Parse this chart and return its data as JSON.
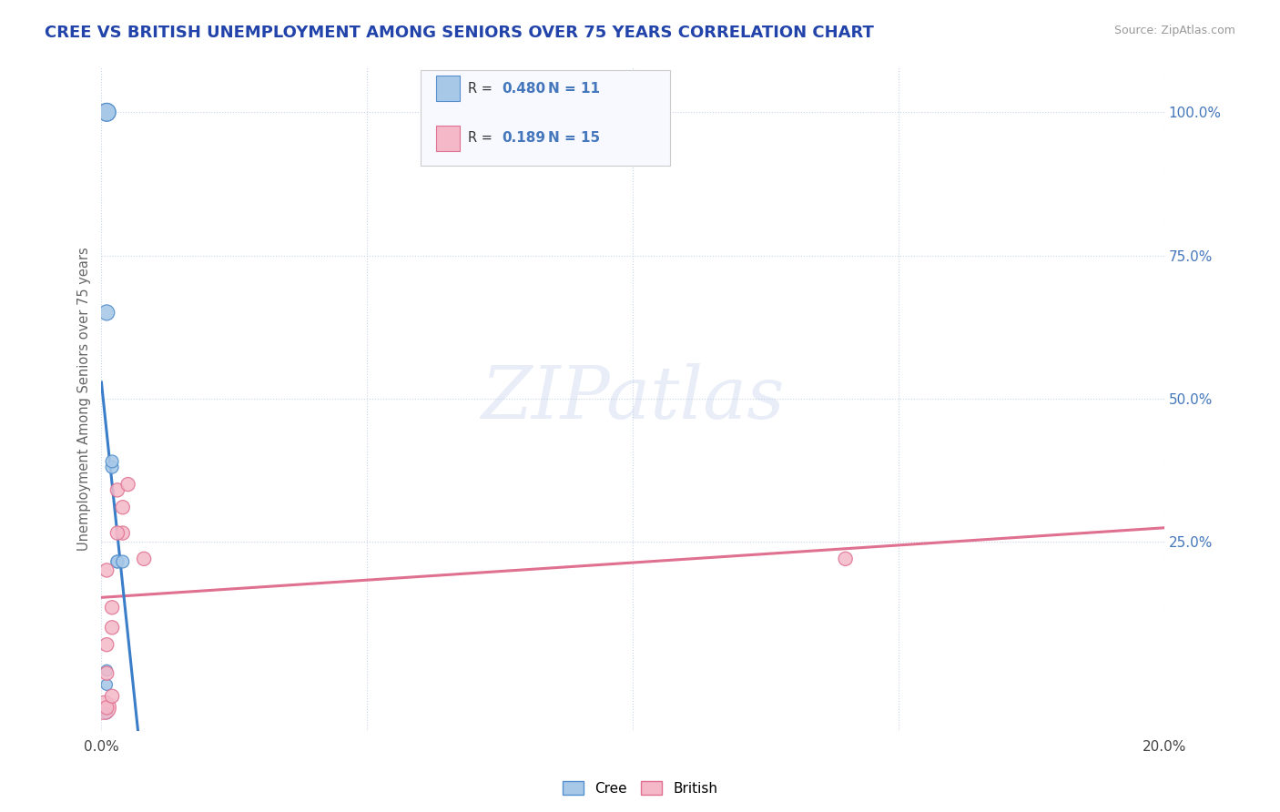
{
  "title": "CREE VS BRITISH UNEMPLOYMENT AMONG SENIORS OVER 75 YEARS CORRELATION CHART",
  "source": "Source: ZipAtlas.com",
  "ylabel": "Unemployment Among Seniors over 75 years",
  "xlim": [
    0.0,
    0.2
  ],
  "ylim": [
    -0.08,
    1.08
  ],
  "y_ticks_right": [
    0.0,
    0.25,
    0.5,
    0.75,
    1.0
  ],
  "y_tick_labels_right": [
    "",
    "25.0%",
    "50.0%",
    "75.0%",
    "100.0%"
  ],
  "cree_x": [
    0.001,
    0.001,
    0.001,
    0.001,
    0.002,
    0.002,
    0.003,
    0.003,
    0.004,
    0.001,
    0.001
  ],
  "cree_y": [
    0.0,
    -0.05,
    0.025,
    0.65,
    0.38,
    0.39,
    0.215,
    0.215,
    0.215,
    1.0,
    1.0
  ],
  "british_x": [
    0.0005,
    0.001,
    0.001,
    0.001,
    0.001,
    0.002,
    0.002,
    0.002,
    0.003,
    0.004,
    0.003,
    0.004,
    0.005,
    0.008,
    0.14
  ],
  "british_y": [
    -0.04,
    -0.04,
    0.02,
    0.07,
    0.2,
    -0.02,
    0.1,
    0.135,
    0.34,
    0.265,
    0.265,
    0.31,
    0.35,
    0.22,
    0.22
  ],
  "cree_color": "#a8c8e8",
  "british_color": "#f4b8c8",
  "cree_edge_color": "#5590cc",
  "british_edge_color": "#e07090",
  "cree_line_color": "#3a7dc9",
  "british_line_color": "#e07090",
  "legend_box_color": "#f8f8ff",
  "legend_border_color": "#cccccc",
  "cree_R": "0.480",
  "cree_N": "11",
  "british_R": "0.189",
  "british_N": "15",
  "watermark": "ZIPatlas",
  "grid_color": "#c8d4e8",
  "background_color": "#ffffff",
  "title_color": "#2244aa",
  "axis_label_color": "#666666",
  "right_tick_color": "#4477bb",
  "source_color": "#999999"
}
